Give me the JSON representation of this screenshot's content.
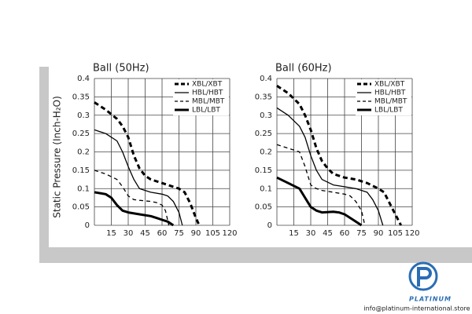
{
  "chart_data": [
    {
      "type": "line",
      "title": "Ball (50Hz)",
      "ylabel": "Static Pressure (Inch-H₂O)",
      "xlim": [
        0,
        120
      ],
      "xticks": [
        15,
        30,
        45,
        60,
        75,
        90,
        105,
        120
      ],
      "ylim": [
        0,
        0.4
      ],
      "yticks": [
        0,
        0.05,
        0.1,
        0.15,
        0.2,
        0.25,
        0.3,
        0.35,
        0.4
      ],
      "grid": true,
      "legend": "upper right",
      "series": [
        {
          "name": "XBL/XBT",
          "color": "#000000",
          "linewidth": 3,
          "line_style": "dashed",
          "x": [
            0,
            10,
            20,
            25,
            30,
            35,
            40,
            45,
            50,
            60,
            70,
            75,
            80,
            85,
            90,
            93
          ],
          "values": [
            0.335,
            0.315,
            0.29,
            0.27,
            0.24,
            0.19,
            0.155,
            0.135,
            0.125,
            0.115,
            0.105,
            0.1,
            0.09,
            0.06,
            0.02,
            0
          ]
        },
        {
          "name": "HBL/HBT",
          "color": "#000000",
          "linewidth": 1.3,
          "line_style": "solid",
          "x": [
            0,
            10,
            20,
            25,
            30,
            35,
            40,
            45,
            50,
            60,
            65,
            70,
            75,
            78
          ],
          "values": [
            0.26,
            0.25,
            0.23,
            0.2,
            0.16,
            0.125,
            0.1,
            0.095,
            0.09,
            0.085,
            0.08,
            0.065,
            0.035,
            0
          ]
        },
        {
          "name": "MBL/MBT",
          "color": "#000000",
          "linewidth": 1.3,
          "line_style": "dashed",
          "x": [
            0,
            10,
            20,
            25,
            30,
            35,
            40,
            50,
            55,
            60,
            63,
            66
          ],
          "values": [
            0.15,
            0.14,
            0.125,
            0.105,
            0.08,
            0.07,
            0.068,
            0.065,
            0.062,
            0.055,
            0.04,
            0
          ]
        },
        {
          "name": "LBL/LBT",
          "color": "#000000",
          "linewidth": 3,
          "line_style": "solid",
          "x": [
            0,
            10,
            15,
            20,
            25,
            30,
            40,
            50,
            55,
            60,
            65,
            70
          ],
          "values": [
            0.09,
            0.085,
            0.075,
            0.055,
            0.04,
            0.035,
            0.03,
            0.025,
            0.02,
            0.015,
            0.01,
            0
          ]
        }
      ]
    },
    {
      "type": "line",
      "title": "Ball (60Hz)",
      "xlim": [
        0,
        120
      ],
      "xticks": [
        15,
        30,
        45,
        60,
        75,
        90,
        105,
        120
      ],
      "ylim": [
        0,
        0.4
      ],
      "yticks": [
        0,
        0.05,
        0.1,
        0.15,
        0.2,
        0.25,
        0.3,
        0.35,
        0.4
      ],
      "grid": true,
      "legend": "upper right",
      "series": [
        {
          "name": "XBL/XBT",
          "color": "#000000",
          "linewidth": 3,
          "line_style": "dashed",
          "x": [
            0,
            10,
            20,
            25,
            30,
            35,
            40,
            45,
            50,
            60,
            70,
            80,
            90,
            95,
            100,
            105,
            110
          ],
          "values": [
            0.38,
            0.36,
            0.33,
            0.3,
            0.26,
            0.21,
            0.175,
            0.155,
            0.14,
            0.13,
            0.125,
            0.115,
            0.1,
            0.09,
            0.06,
            0.03,
            0
          ]
        },
        {
          "name": "HBL/HBT",
          "color": "#000000",
          "linewidth": 1.3,
          "line_style": "solid",
          "x": [
            0,
            10,
            20,
            25,
            30,
            35,
            40,
            50,
            60,
            70,
            80,
            85,
            90,
            94
          ],
          "values": [
            0.32,
            0.3,
            0.27,
            0.24,
            0.19,
            0.15,
            0.125,
            0.11,
            0.105,
            0.1,
            0.09,
            0.07,
            0.04,
            0
          ]
        },
        {
          "name": "MBL/MBT",
          "color": "#000000",
          "linewidth": 1.3,
          "line_style": "dashed",
          "x": [
            0,
            10,
            20,
            25,
            30,
            35,
            40,
            50,
            60,
            65,
            70,
            75,
            78
          ],
          "values": [
            0.22,
            0.21,
            0.2,
            0.16,
            0.11,
            0.1,
            0.095,
            0.09,
            0.085,
            0.08,
            0.065,
            0.04,
            0
          ]
        },
        {
          "name": "LBL/LBT",
          "color": "#000000",
          "linewidth": 3,
          "line_style": "solid",
          "x": [
            0,
            10,
            20,
            25,
            30,
            35,
            40,
            50,
            55,
            60,
            65,
            70,
            75
          ],
          "values": [
            0.13,
            0.115,
            0.1,
            0.075,
            0.05,
            0.04,
            0.035,
            0.037,
            0.035,
            0.03,
            0.02,
            0.01,
            0
          ]
        }
      ]
    }
  ],
  "watermark": {
    "brand": "PLATINUM",
    "email": "info@platinum-international.store"
  }
}
